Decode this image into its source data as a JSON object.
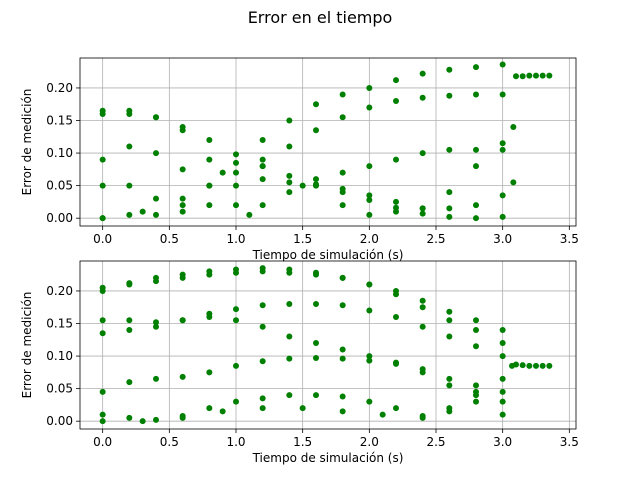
{
  "figure": {
    "title": "Error en el tiempo"
  },
  "chart_data": [
    {
      "type": "scatter",
      "xlabel": "Tiempo de simulación (s)",
      "ylabel": "Error de medición",
      "xlim": [
        -0.17,
        3.55
      ],
      "ylim": [
        -0.012,
        0.246
      ],
      "xticks": [
        0.0,
        0.5,
        1.0,
        1.5,
        2.0,
        2.5,
        3.0,
        3.5
      ],
      "xtick_labels": [
        "0.0",
        "0.5",
        "1.0",
        "1.5",
        "2.0",
        "2.5",
        "3.0",
        "3.5"
      ],
      "yticks": [
        0.0,
        0.05,
        0.1,
        0.15,
        0.2
      ],
      "ytick_labels": [
        "0.00",
        "0.05",
        "0.10",
        "0.15",
        "0.20"
      ],
      "grid": true,
      "marker_color": "#008000",
      "series": [
        {
          "points": [
            [
              0.0,
              0.16
            ],
            [
              0.2,
              0.165
            ],
            [
              0.4,
              0.155
            ],
            [
              0.6,
              0.14
            ],
            [
              0.8,
              0.12
            ],
            [
              1.0,
              0.098
            ],
            [
              1.2,
              0.08
            ],
            [
              1.4,
              0.065
            ],
            [
              1.6,
              0.052
            ],
            [
              1.8,
              0.04
            ],
            [
              2.0,
              0.028
            ],
            [
              2.2,
              0.016
            ],
            [
              2.4,
              0.007
            ],
            [
              2.6,
              0.002
            ],
            [
              2.8,
              0.0
            ],
            [
              3.0,
              0.002
            ]
          ]
        },
        {
          "points": [
            [
              0.0,
              0.09
            ],
            [
              0.2,
              0.11
            ],
            [
              0.4,
              0.1
            ],
            [
              0.6,
              0.075
            ],
            [
              0.8,
              0.05
            ],
            [
              1.0,
              0.02
            ],
            [
              1.1,
              0.005
            ],
            [
              1.2,
              0.02
            ],
            [
              1.4,
              0.04
            ],
            [
              1.6,
              0.06
            ],
            [
              1.8,
              0.07
            ],
            [
              2.0,
              0.08
            ],
            [
              2.2,
              0.09
            ],
            [
              2.4,
              0.1
            ],
            [
              2.6,
              0.105
            ],
            [
              2.8,
              0.105
            ],
            [
              3.0,
              0.105
            ]
          ]
        },
        {
          "points": [
            [
              0.0,
              0.0
            ],
            [
              0.2,
              0.005
            ],
            [
              0.4,
              0.005
            ],
            [
              0.6,
              0.02
            ],
            [
              0.8,
              0.05
            ],
            [
              1.0,
              0.085
            ],
            [
              1.2,
              0.12
            ],
            [
              1.4,
              0.15
            ],
            [
              1.6,
              0.175
            ],
            [
              1.8,
              0.19
            ],
            [
              2.0,
              0.2
            ],
            [
              2.2,
              0.212
            ],
            [
              2.4,
              0.222
            ],
            [
              2.6,
              0.228
            ],
            [
              2.8,
              0.232
            ],
            [
              3.0,
              0.236
            ]
          ]
        },
        {
          "points": [
            [
              0.0,
              0.165
            ],
            [
              0.2,
              0.16
            ],
            [
              0.4,
              0.155
            ],
            [
              0.6,
              0.135
            ],
            [
              0.8,
              0.09
            ],
            [
              1.0,
              0.07
            ],
            [
              1.2,
              0.06
            ],
            [
              1.4,
              0.055
            ],
            [
              1.6,
              0.05
            ],
            [
              1.8,
              0.045
            ],
            [
              2.0,
              0.035
            ],
            [
              2.2,
              0.025
            ],
            [
              2.4,
              0.015
            ],
            [
              2.6,
              0.015
            ],
            [
              2.8,
              0.02
            ],
            [
              3.0,
              0.035
            ],
            [
              3.08,
              0.055
            ]
          ]
        },
        {
          "points": [
            [
              0.0,
              0.05
            ],
            [
              0.2,
              0.05
            ],
            [
              0.4,
              0.03
            ],
            [
              0.6,
              0.01
            ],
            [
              0.8,
              0.02
            ],
            [
              1.0,
              0.05
            ],
            [
              1.2,
              0.08
            ],
            [
              1.4,
              0.11
            ],
            [
              1.6,
              0.135
            ],
            [
              1.8,
              0.155
            ],
            [
              2.0,
              0.17
            ],
            [
              2.2,
              0.18
            ],
            [
              2.4,
              0.185
            ],
            [
              2.6,
              0.188
            ],
            [
              2.8,
              0.19
            ],
            [
              3.0,
              0.19
            ]
          ]
        },
        {
          "points": [
            [
              0.0,
              0.0
            ],
            [
              0.3,
              0.01
            ],
            [
              0.6,
              0.03
            ],
            [
              0.9,
              0.07
            ],
            [
              1.2,
              0.09
            ],
            [
              1.5,
              0.05
            ],
            [
              1.8,
              0.02
            ],
            [
              2.0,
              0.005
            ],
            [
              2.2,
              0.01
            ],
            [
              2.4,
              0.015
            ],
            [
              2.6,
              0.04
            ],
            [
              2.8,
              0.08
            ],
            [
              3.0,
              0.115
            ],
            [
              3.08,
              0.14
            ]
          ]
        },
        {
          "points": [
            [
              3.1,
              0.218
            ],
            [
              3.15,
              0.218
            ],
            [
              3.2,
              0.219
            ],
            [
              3.25,
              0.219
            ],
            [
              3.3,
              0.219
            ],
            [
              3.35,
              0.219
            ]
          ]
        }
      ]
    },
    {
      "type": "scatter",
      "xlabel": "Tiempo de simulación (s)",
      "ylabel": "Error de medición",
      "xlim": [
        -0.17,
        3.55
      ],
      "ylim": [
        -0.012,
        0.246
      ],
      "xticks": [
        0.0,
        0.5,
        1.0,
        1.5,
        2.0,
        2.5,
        3.0,
        3.5
      ],
      "xtick_labels": [
        "0.0",
        "0.5",
        "1.0",
        "1.5",
        "2.0",
        "2.5",
        "3.0",
        "3.5"
      ],
      "yticks": [
        0.0,
        0.05,
        0.1,
        0.15,
        0.2
      ],
      "ytick_labels": [
        "0.00",
        "0.05",
        "0.10",
        "0.15",
        "0.20"
      ],
      "grid": true,
      "marker_color": "#008000",
      "series": [
        {
          "points": [
            [
              0.0,
              0.2
            ],
            [
              0.2,
              0.21
            ],
            [
              0.4,
              0.215
            ],
            [
              0.6,
              0.22
            ],
            [
              0.8,
              0.225
            ],
            [
              1.0,
              0.228
            ],
            [
              1.2,
              0.23
            ],
            [
              1.4,
              0.228
            ],
            [
              1.6,
              0.225
            ],
            [
              1.8,
              0.22
            ],
            [
              2.0,
              0.21
            ],
            [
              2.2,
              0.2
            ],
            [
              2.4,
              0.185
            ],
            [
              2.6,
              0.168
            ],
            [
              2.8,
              0.155
            ],
            [
              3.0,
              0.14
            ]
          ]
        },
        {
          "points": [
            [
              0.0,
              0.205
            ],
            [
              0.2,
              0.212
            ],
            [
              0.4,
              0.22
            ],
            [
              0.6,
              0.225
            ],
            [
              0.8,
              0.23
            ],
            [
              1.0,
              0.233
            ],
            [
              1.2,
              0.235
            ],
            [
              1.4,
              0.233
            ],
            [
              1.6,
              0.228
            ],
            [
              1.8,
              0.22
            ],
            [
              2.0,
              0.21
            ],
            [
              2.2,
              0.195
            ],
            [
              2.4,
              0.175
            ],
            [
              2.6,
              0.155
            ],
            [
              2.8,
              0.14
            ],
            [
              3.0,
              0.12
            ]
          ]
        },
        {
          "points": [
            [
              0.0,
              0.135
            ],
            [
              0.2,
              0.14
            ],
            [
              0.4,
              0.145
            ],
            [
              0.6,
              0.155
            ],
            [
              0.8,
              0.165
            ],
            [
              1.0,
              0.172
            ],
            [
              1.2,
              0.178
            ],
            [
              1.4,
              0.18
            ],
            [
              1.6,
              0.18
            ],
            [
              1.8,
              0.178
            ],
            [
              2.0,
              0.17
            ],
            [
              2.2,
              0.16
            ],
            [
              2.4,
              0.145
            ],
            [
              2.6,
              0.13
            ],
            [
              2.8,
              0.115
            ],
            [
              3.0,
              0.1
            ]
          ]
        },
        {
          "points": [
            [
              0.0,
              0.155
            ],
            [
              0.2,
              0.155
            ],
            [
              0.4,
              0.152
            ],
            [
              0.6,
              0.155
            ],
            [
              0.8,
              0.16
            ],
            [
              1.0,
              0.155
            ],
            [
              1.2,
              0.145
            ],
            [
              1.4,
              0.13
            ],
            [
              1.6,
              0.12
            ],
            [
              1.8,
              0.11
            ],
            [
              2.0,
              0.1
            ],
            [
              2.2,
              0.09
            ],
            [
              2.4,
              0.08
            ],
            [
              2.6,
              0.065
            ],
            [
              2.8,
              0.055
            ],
            [
              3.0,
              0.045
            ]
          ]
        },
        {
          "points": [
            [
              0.0,
              0.045
            ],
            [
              0.2,
              0.06
            ],
            [
              0.4,
              0.065
            ],
            [
              0.6,
              0.068
            ],
            [
              0.8,
              0.075
            ],
            [
              1.0,
              0.085
            ],
            [
              1.2,
              0.092
            ],
            [
              1.4,
              0.096
            ],
            [
              1.6,
              0.097
            ],
            [
              1.8,
              0.096
            ],
            [
              2.0,
              0.093
            ],
            [
              2.2,
              0.088
            ],
            [
              2.4,
              0.075
            ],
            [
              2.6,
              0.055
            ],
            [
              2.8,
              0.04
            ],
            [
              3.0,
              0.03
            ]
          ]
        },
        {
          "points": [
            [
              0.0,
              0.01
            ],
            [
              0.2,
              0.005
            ],
            [
              0.4,
              0.002
            ],
            [
              0.6,
              0.008
            ],
            [
              0.8,
              0.02
            ],
            [
              1.0,
              0.03
            ],
            [
              1.2,
              0.035
            ],
            [
              1.4,
              0.04
            ],
            [
              1.6,
              0.04
            ],
            [
              1.8,
              0.038
            ],
            [
              2.0,
              0.03
            ],
            [
              2.2,
              0.02
            ],
            [
              2.4,
              0.008
            ],
            [
              2.6,
              0.015
            ],
            [
              2.8,
              0.045
            ],
            [
              3.0,
              0.065
            ],
            [
              3.07,
              0.085
            ]
          ]
        },
        {
          "points": [
            [
              0.0,
              0.0
            ],
            [
              0.3,
              0.0
            ],
            [
              0.6,
              0.005
            ],
            [
              0.9,
              0.015
            ],
            [
              1.2,
              0.02
            ],
            [
              1.5,
              0.02
            ],
            [
              1.8,
              0.015
            ],
            [
              2.1,
              0.01
            ],
            [
              2.4,
              0.005
            ],
            [
              2.6,
              0.02
            ],
            [
              2.8,
              0.03
            ],
            [
              3.0,
              0.01
            ]
          ]
        },
        {
          "points": [
            [
              3.1,
              0.087
            ],
            [
              3.15,
              0.086
            ],
            [
              3.2,
              0.085
            ],
            [
              3.25,
              0.085
            ],
            [
              3.3,
              0.085
            ],
            [
              3.35,
              0.085
            ]
          ]
        }
      ]
    }
  ]
}
